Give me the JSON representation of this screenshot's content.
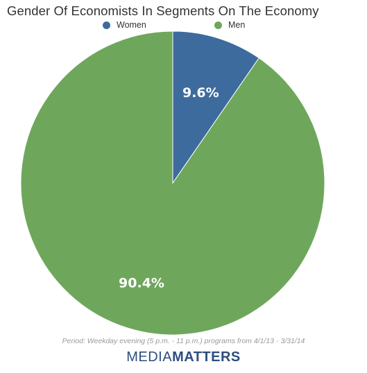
{
  "title": "Gender Of Economists In Segments On The Economy",
  "legend": {
    "items": [
      {
        "label": "Women",
        "color": "#3e6b9e"
      },
      {
        "label": "Men",
        "color": "#6ea75c"
      }
    ]
  },
  "chart_data": {
    "type": "pie",
    "title": "Gender Of Economists In Segments On The Economy",
    "slices": [
      {
        "name": "Women",
        "value": 9.6,
        "label": "9.6%",
        "color": "#3e6b9e"
      },
      {
        "name": "Men",
        "value": 90.4,
        "label": "90.4%",
        "color": "#6ea75c"
      }
    ],
    "start_angle": "12 o'clock",
    "direction": "clockwise",
    "legend_position": "top-center"
  },
  "footnote": "Period: Weekday evening (5 p.m. - 11 p.m.) programs from 4/1/13 - 3/31/14",
  "brand": {
    "part1": "MEDIA",
    "part2": "MATTERS"
  }
}
